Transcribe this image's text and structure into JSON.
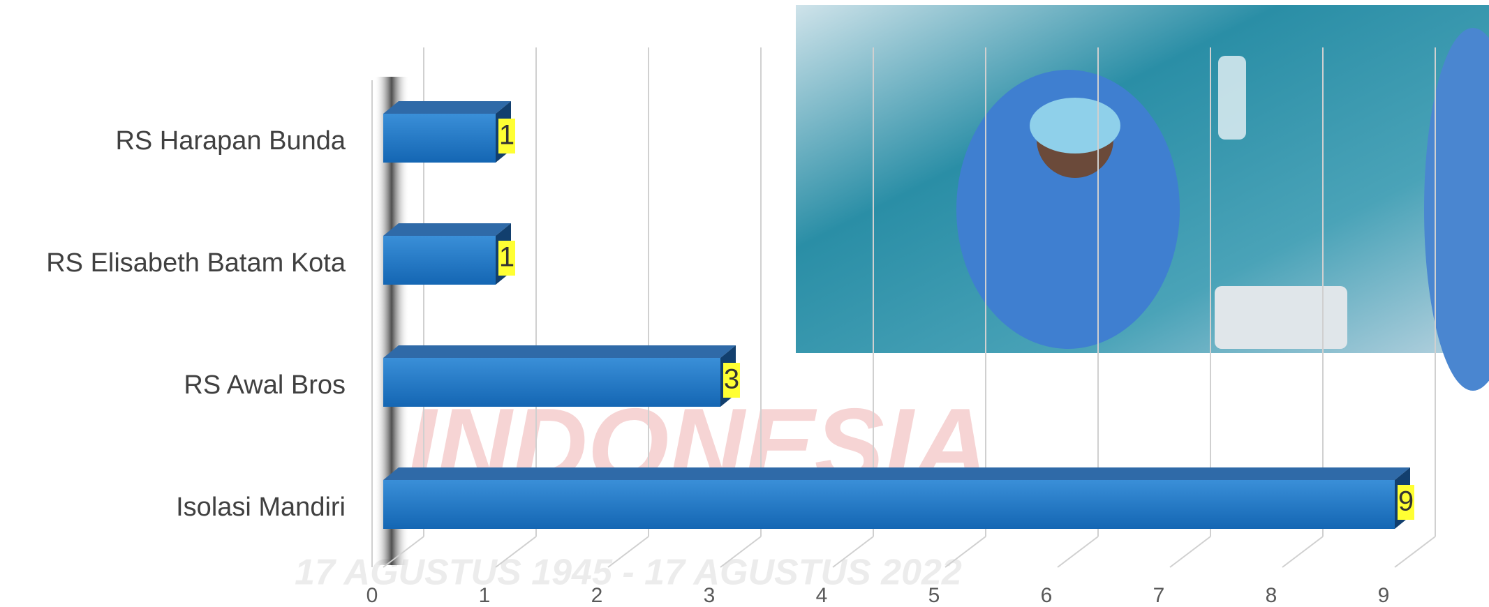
{
  "chart_data": {
    "type": "bar",
    "orientation": "horizontal",
    "categories": [
      "RS Harapan Bunda",
      "RS Elisabeth Batam Kota",
      "RS Awal Bros",
      "Isolasi Mandiri"
    ],
    "values": [
      1,
      1,
      3,
      9
    ],
    "color": "#1f78c8",
    "xlim": [
      0,
      9
    ],
    "xticks": [
      0,
      1,
      2,
      3,
      4,
      5,
      6,
      7,
      8,
      9
    ],
    "grid": true,
    "watermarks": [
      "INDONESIA",
      "17 AGUSTUS 1945 - 17 AGUSTUS 2022"
    ]
  }
}
